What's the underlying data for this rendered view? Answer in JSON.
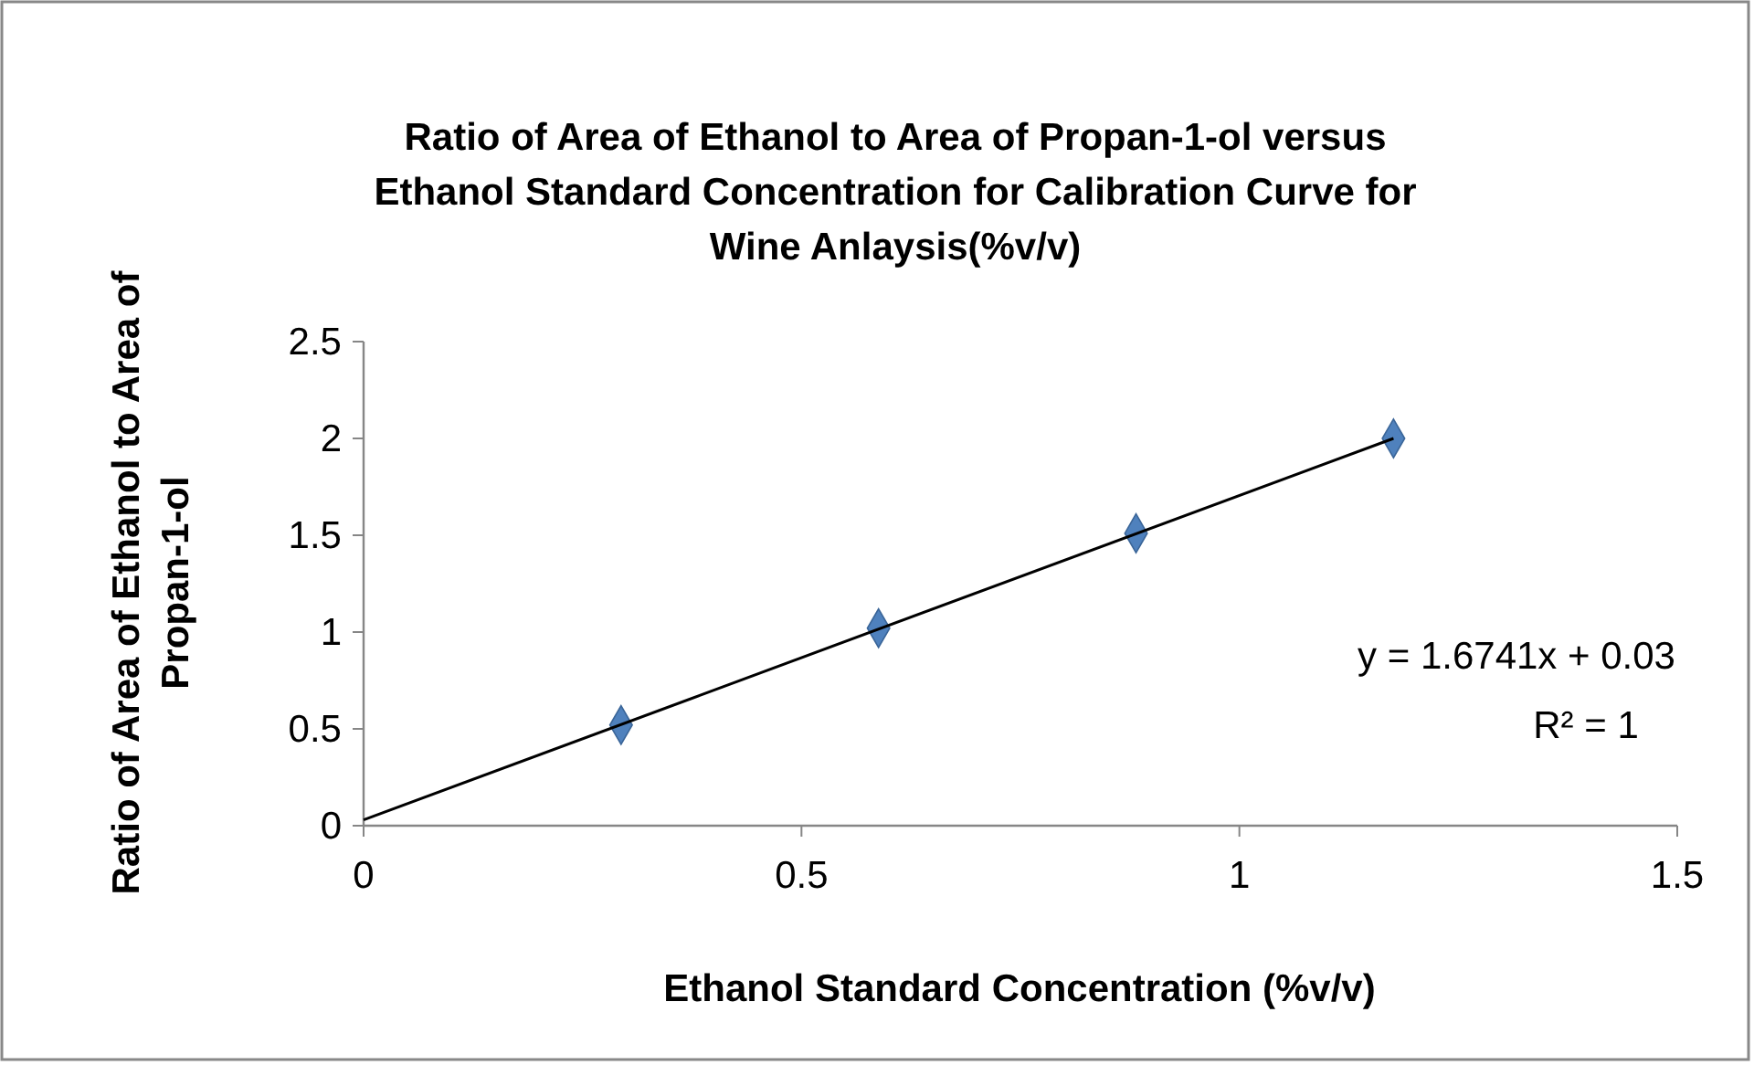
{
  "chart_data": {
    "type": "scatter",
    "title": "Ratio of Area of Ethanol to Area of Propan-1-ol versus Ethanol Standard Concentration for Calibration Curve for Wine Anlaysis(%v/v)",
    "xlabel": "Ethanol Standard Concentration (%v/v)",
    "ylabel": "Ratio of Area of Ethanol to Area of Propan-1-ol",
    "xlim": [
      0,
      1.5
    ],
    "xticks": [
      0,
      0.5,
      1,
      1.5
    ],
    "ylim": [
      0,
      2.5
    ],
    "yticks": [
      0,
      0.5,
      1,
      1.5,
      2,
      2.5
    ],
    "grid": false,
    "series": [
      {
        "marker": "diamond",
        "color": "#4f81bd",
        "x": [
          0.294,
          0.588,
          0.882,
          1.176
        ],
        "values": [
          0.52,
          1.02,
          1.51,
          2.0
        ]
      },
      {
        "type": "line",
        "color": "#000000",
        "x": [
          0,
          1.176
        ],
        "values": [
          0.03,
          2.0
        ]
      }
    ],
    "annotations": [
      "y = 1.6741x + 0.03",
      "R² = 1"
    ]
  }
}
